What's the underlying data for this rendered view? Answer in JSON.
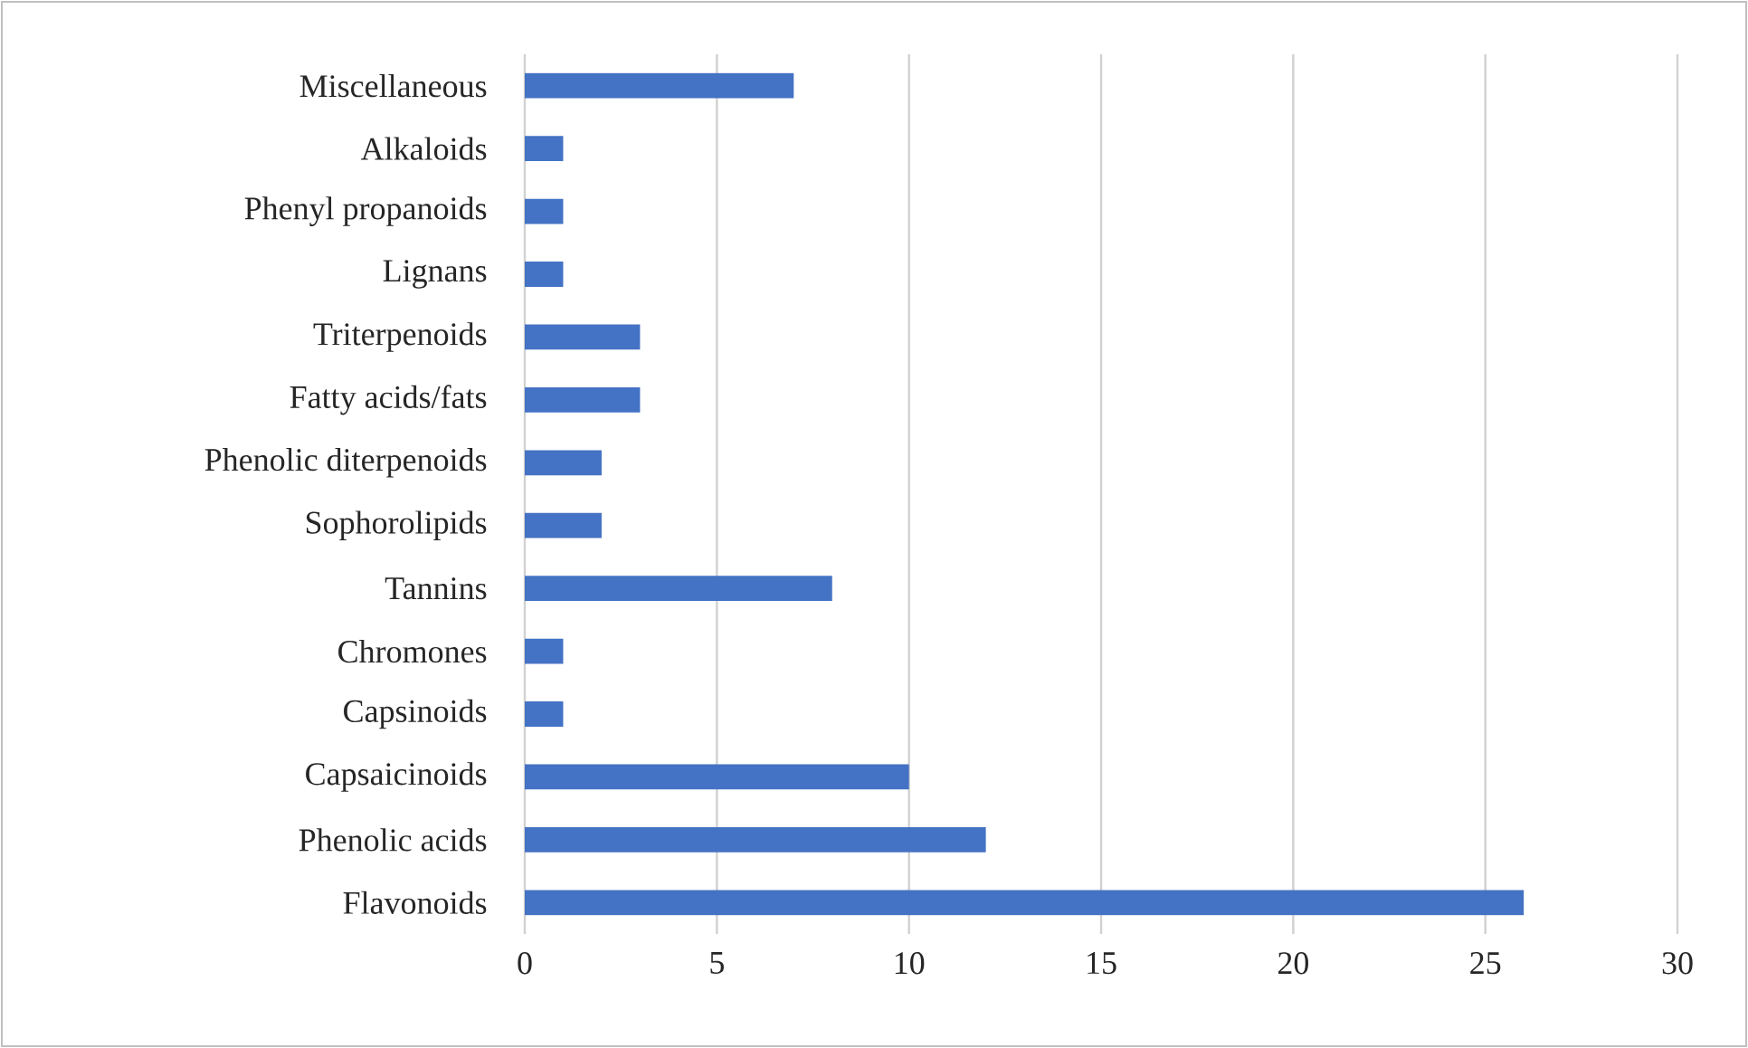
{
  "chart_data": {
    "type": "bar",
    "orientation": "horizontal",
    "categories": [
      "Miscellaneous",
      "Alkaloids",
      "Phenyl propanoids",
      "Lignans",
      "Triterpenoids",
      "Fatty acids/fats",
      "Phenolic diterpenoids",
      "Sophorolipids",
      "Tannins",
      "Chromones",
      "Capsinoids",
      "Capsaicinoids",
      "Phenolic acids",
      "Flavonoids"
    ],
    "values": [
      7,
      1,
      1,
      1,
      3,
      3,
      2,
      2,
      8,
      1,
      1,
      10,
      12,
      26
    ],
    "color": "#4472c4",
    "xlim": [
      0,
      30
    ],
    "xticks": [
      0,
      5,
      10,
      15,
      20,
      25,
      30
    ],
    "grid": "x"
  }
}
